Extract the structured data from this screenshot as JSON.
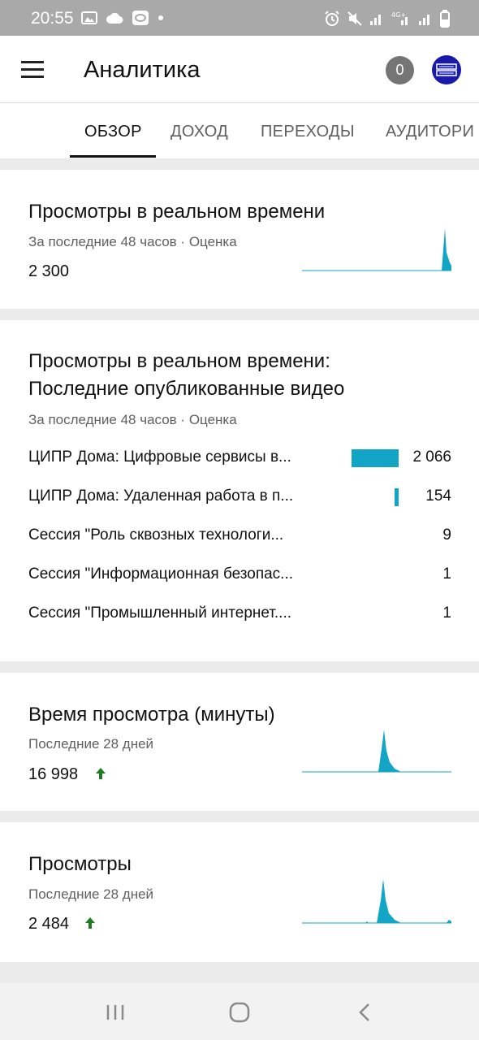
{
  "status_bar": {
    "time": "20:55"
  },
  "app_bar": {
    "title": "Аналитика",
    "notification_count": "0"
  },
  "tabs": [
    {
      "label": "ОБЗОР",
      "active": true
    },
    {
      "label": "ДОХОД",
      "active": false
    },
    {
      "label": "ПЕРЕХОДЫ",
      "active": false
    },
    {
      "label": "АУДИТОРИ",
      "active": false
    }
  ],
  "cards": {
    "realtime": {
      "title": "Просмотры в реальном времени",
      "subtitle": "За последние 48 часов · Оценка",
      "value": "2 300"
    },
    "latest_videos": {
      "title_line1": "Просмотры в реальном времени:",
      "title_line2": "Последние опубликованные видео",
      "subtitle": "За последние 48 часов · Оценка",
      "rows": [
        {
          "title": "ЦИПР Дома: Цифровые сервисы в...",
          "value": "2 066",
          "bar_fraction": 1.0
        },
        {
          "title": "ЦИПР Дома: Удаленная работа в п...",
          "value": "154",
          "bar_fraction": 0.0745
        },
        {
          "title": "Сессия \"Роль сквозных технологи...",
          "value": "9",
          "bar_fraction": 0
        },
        {
          "title": "Сессия \"Информационная безопас...",
          "value": "1",
          "bar_fraction": 0
        },
        {
          "title": "Сессия \"Промышленный интернет....",
          "value": "1",
          "bar_fraction": 0
        }
      ]
    },
    "watch_time": {
      "title": "Время просмотра (минуты)",
      "subtitle": "Последние 28 дней",
      "value": "16 998",
      "trend": "up"
    },
    "views": {
      "title": "Просмотры",
      "subtitle": "Последние 28 дней",
      "value": "2 484",
      "trend": "up"
    }
  },
  "colors": {
    "accent": "#12a5c6",
    "trend_up": "#1e7d22",
    "status_bar": "#a9a9a9"
  }
}
